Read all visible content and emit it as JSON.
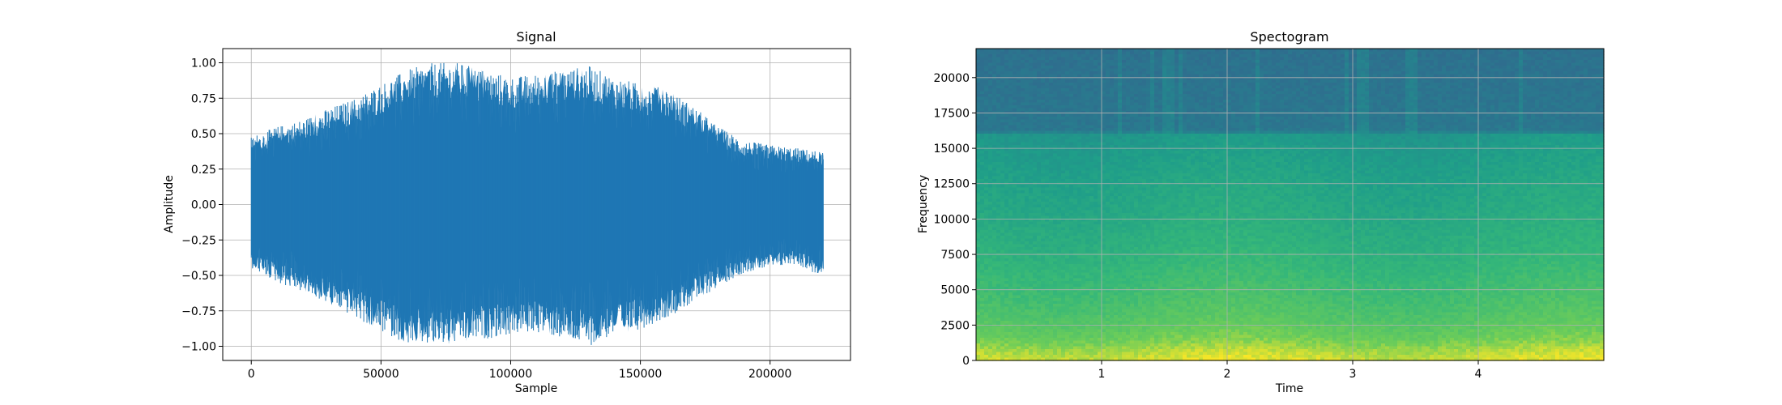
{
  "chart_data": [
    {
      "type": "line",
      "title": "Signal",
      "xlabel": "Sample",
      "ylabel": "Amplitude",
      "xlim": [
        -11000,
        231000
      ],
      "ylim": [
        -1.1,
        1.1
      ],
      "xticks": [
        0,
        50000,
        100000,
        150000,
        200000
      ],
      "xtick_labels": [
        "0",
        "50000",
        "100000",
        "150000",
        "200000"
      ],
      "yticks": [
        -1.0,
        -0.75,
        -0.5,
        -0.25,
        0.0,
        0.25,
        0.5,
        0.75,
        1.0
      ],
      "ytick_labels": [
        "−1.00",
        "−0.75",
        "−0.50",
        "−0.25",
        "0.00",
        "0.25",
        "0.50",
        "0.75",
        "1.00"
      ],
      "grid": true,
      "color": "#1f77b4",
      "sample_count": 220500,
      "envelope": {
        "x": [
          0,
          10000,
          20000,
          30000,
          40000,
          50000,
          60000,
          70000,
          80000,
          90000,
          100000,
          110000,
          120000,
          130000,
          140000,
          150000,
          160000,
          170000,
          180000,
          190000,
          200000,
          210000,
          220500
        ],
        "upper": [
          0.48,
          0.55,
          0.6,
          0.68,
          0.75,
          0.85,
          0.95,
          1.0,
          1.0,
          0.95,
          0.9,
          0.92,
          0.95,
          0.98,
          0.9,
          0.85,
          0.82,
          0.7,
          0.55,
          0.45,
          0.42,
          0.4,
          0.37
        ],
        "lower": [
          -0.45,
          -0.55,
          -0.62,
          -0.7,
          -0.8,
          -0.9,
          -0.98,
          -1.0,
          -0.98,
          -0.95,
          -0.92,
          -0.9,
          -0.95,
          -1.0,
          -0.92,
          -0.88,
          -0.8,
          -0.7,
          -0.58,
          -0.48,
          -0.45,
          -0.42,
          -0.52
        ]
      }
    },
    {
      "type": "heatmap",
      "title": "Spectogram",
      "xlabel": "Time",
      "ylabel": "Frequency",
      "xlim": [
        0,
        5.0
      ],
      "ylim": [
        0,
        22050
      ],
      "xticks": [
        1,
        2,
        3,
        4
      ],
      "xtick_labels": [
        "1",
        "2",
        "3",
        "4"
      ],
      "yticks": [
        0,
        2500,
        5000,
        7500,
        10000,
        12500,
        15000,
        17500,
        20000
      ],
      "ytick_labels": [
        "0",
        "2500",
        "5000",
        "7500",
        "10000",
        "12500",
        "15000",
        "17500",
        "20000"
      ],
      "grid": true,
      "colormap": "viridis",
      "cutoff_frequency": 16000,
      "intensity_by_frequency": {
        "frequency": [
          0,
          800,
          1500,
          2500,
          4000,
          6000,
          8000,
          10000,
          12500,
          15000,
          16000,
          16200,
          22050
        ],
        "level": [
          0.97,
          0.93,
          0.88,
          0.84,
          0.8,
          0.76,
          0.72,
          0.69,
          0.66,
          0.62,
          0.6,
          0.45,
          0.42
        ]
      },
      "transient_times": [
        1.15,
        1.4,
        1.5,
        1.55,
        1.62,
        2.25,
        2.95,
        3.05,
        3.1,
        3.45,
        3.5,
        4.33
      ]
    }
  ]
}
